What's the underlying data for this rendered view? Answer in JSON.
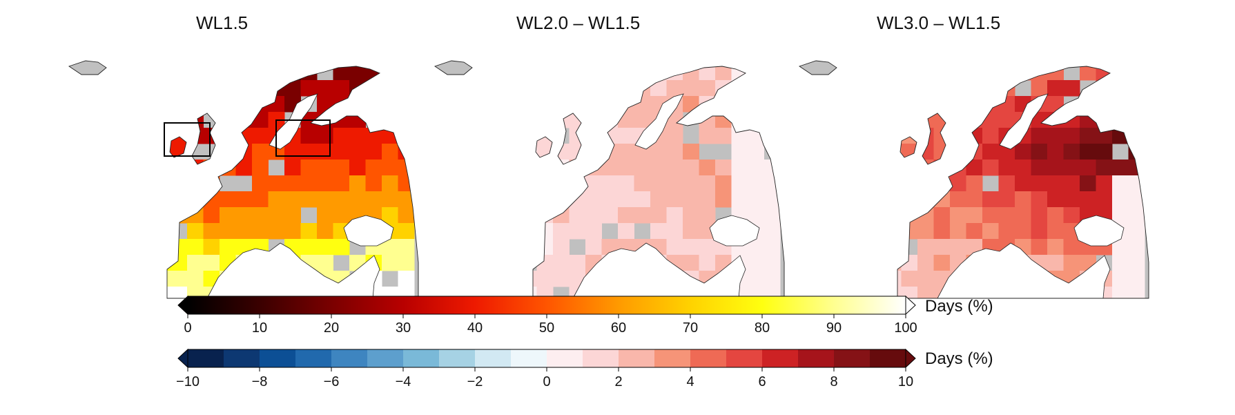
{
  "panels": [
    {
      "title": "WL1.5",
      "palette": "absolute"
    },
    {
      "title": "WL2.0 – WL1.5",
      "palette": "difference"
    },
    {
      "title": "WL3.0 – WL1.5",
      "palette": "difference"
    }
  ],
  "colorbar_absolute": {
    "label": "Days (%)",
    "ticks": [
      "0",
      "10",
      "20",
      "30",
      "40",
      "50",
      "60",
      "70",
      "80",
      "90",
      "100"
    ],
    "range": [
      0,
      100
    ],
    "colors": [
      "#000000",
      "#3a0000",
      "#7a0000",
      "#b80000",
      "#ee1a00",
      "#ff5500",
      "#ff9a00",
      "#ffd200",
      "#ffff10",
      "#ffff90",
      "#ffffff"
    ]
  },
  "colorbar_difference": {
    "label": "Days (%)",
    "ticks": [
      "−10",
      "−8",
      "−6",
      "−4",
      "−2",
      "0",
      "2",
      "4",
      "6",
      "8",
      "10"
    ],
    "range": [
      -10,
      10
    ],
    "colors": [
      "#08224e",
      "#0d3872",
      "#0c4f95",
      "#2169ad",
      "#3e85c0",
      "#5d9fcd",
      "#7ab9d8",
      "#a6d2e4",
      "#d2e9f3",
      "#eef7fb",
      "#fdeef0",
      "#fcd6d6",
      "#f9b7ab",
      "#f69478",
      "#ef6a55",
      "#e44640",
      "#cd2224",
      "#a6141b",
      "#851216",
      "#660b0d"
    ]
  },
  "region_boxes": [
    "western-europe-box",
    "eastern-europe-box"
  ]
}
